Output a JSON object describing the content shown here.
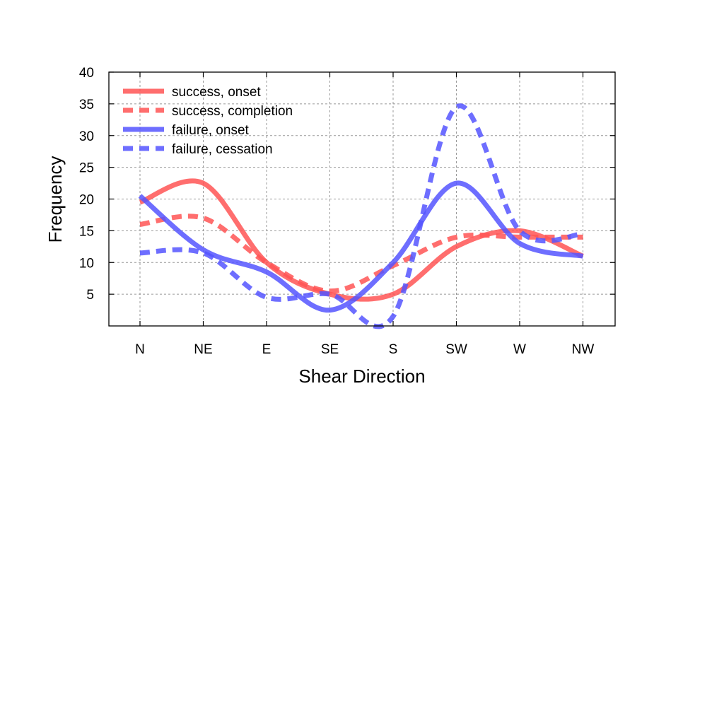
{
  "chart_data": {
    "type": "line",
    "xlabel": "Shear Direction",
    "ylabel": "Frequency",
    "categories": [
      "N",
      "NE",
      "E",
      "SE",
      "S",
      "SW",
      "W",
      "NW"
    ],
    "ylim": [
      0,
      40
    ],
    "yticks": [
      5,
      10,
      15,
      20,
      25,
      30,
      35,
      40
    ],
    "grid": true,
    "legend_position": "top-left",
    "series": [
      {
        "name": "success, onset",
        "color": "#ff5555",
        "style": "solid",
        "values": [
          19.5,
          22.5,
          10,
          5,
          5,
          12.5,
          15,
          11
        ]
      },
      {
        "name": "success, completion",
        "color": "#ff5555",
        "style": "dashed",
        "values": [
          16,
          17,
          10,
          5.5,
          9.5,
          14,
          14,
          14
        ]
      },
      {
        "name": "failure, onset",
        "color": "#5555ff",
        "style": "solid",
        "values": [
          20.5,
          12,
          8.5,
          2.5,
          10,
          22.5,
          13,
          11
        ]
      },
      {
        "name": "failure, cessation",
        "color": "#5555ff",
        "style": "dashed",
        "values": [
          11.5,
          11.5,
          4.5,
          5,
          1.5,
          34.5,
          15,
          14.5
        ]
      }
    ]
  }
}
